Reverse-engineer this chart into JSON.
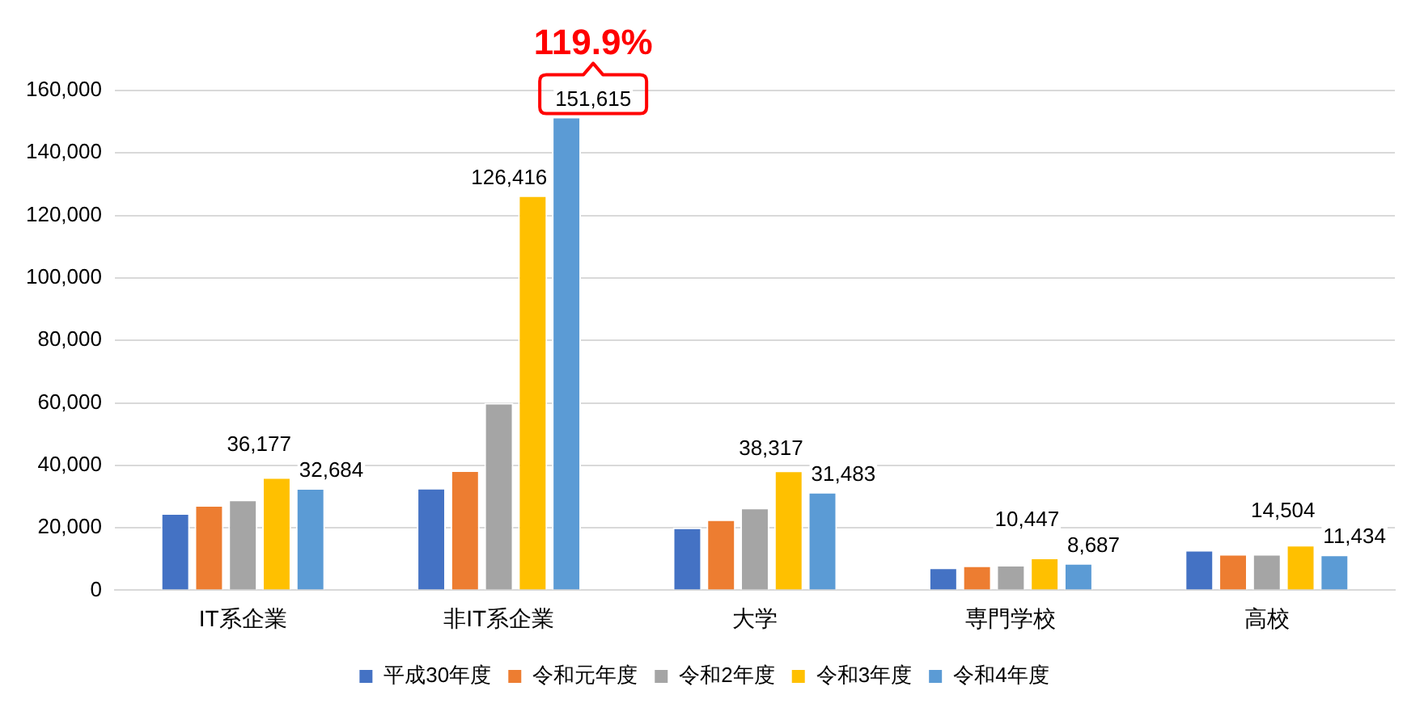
{
  "chart_data": {
    "type": "bar",
    "categories": [
      "IT系企業",
      "非IT系企業",
      "大学",
      "専門学校",
      "高校"
    ],
    "series": [
      {
        "name": "平成30年度",
        "color": "#4472c4",
        "values": [
          24700,
          32800,
          20100,
          7300,
          12900
        ]
      },
      {
        "name": "令和元年度",
        "color": "#ed7d31",
        "values": [
          27300,
          38400,
          22700,
          7900,
          11600
        ]
      },
      {
        "name": "令和2年度",
        "color": "#a5a5a5",
        "values": [
          29000,
          60000,
          26400,
          8100,
          11600
        ]
      },
      {
        "name": "令和3年度",
        "color": "#ffc000",
        "values": [
          36177,
          126416,
          38317,
          10447,
          14504
        ],
        "value_labels": [
          "36,177",
          "126,416",
          "38,317",
          "10,447",
          "14,504"
        ]
      },
      {
        "name": "令和4年度",
        "color": "#5b9bd5",
        "values": [
          32684,
          151615,
          31483,
          8687,
          11434
        ],
        "value_labels": [
          "32,684",
          "151,615",
          "31,483",
          "8,687",
          "11,434"
        ]
      }
    ],
    "ylim": [
      0,
      160000
    ],
    "yticks": [
      {
        "value": 0,
        "label": "0"
      },
      {
        "value": 20000,
        "label": "20,000"
      },
      {
        "value": 40000,
        "label": "40,000"
      },
      {
        "value": 60000,
        "label": "60,000"
      },
      {
        "value": 80000,
        "label": "80,000"
      },
      {
        "value": 100000,
        "label": "100,000"
      },
      {
        "value": 120000,
        "label": "120,000"
      },
      {
        "value": 140000,
        "label": "140,000"
      },
      {
        "value": 160000,
        "label": "160,000"
      }
    ],
    "grid": "y",
    "legend": "bottom",
    "annotations": [
      "119.9%"
    ]
  }
}
